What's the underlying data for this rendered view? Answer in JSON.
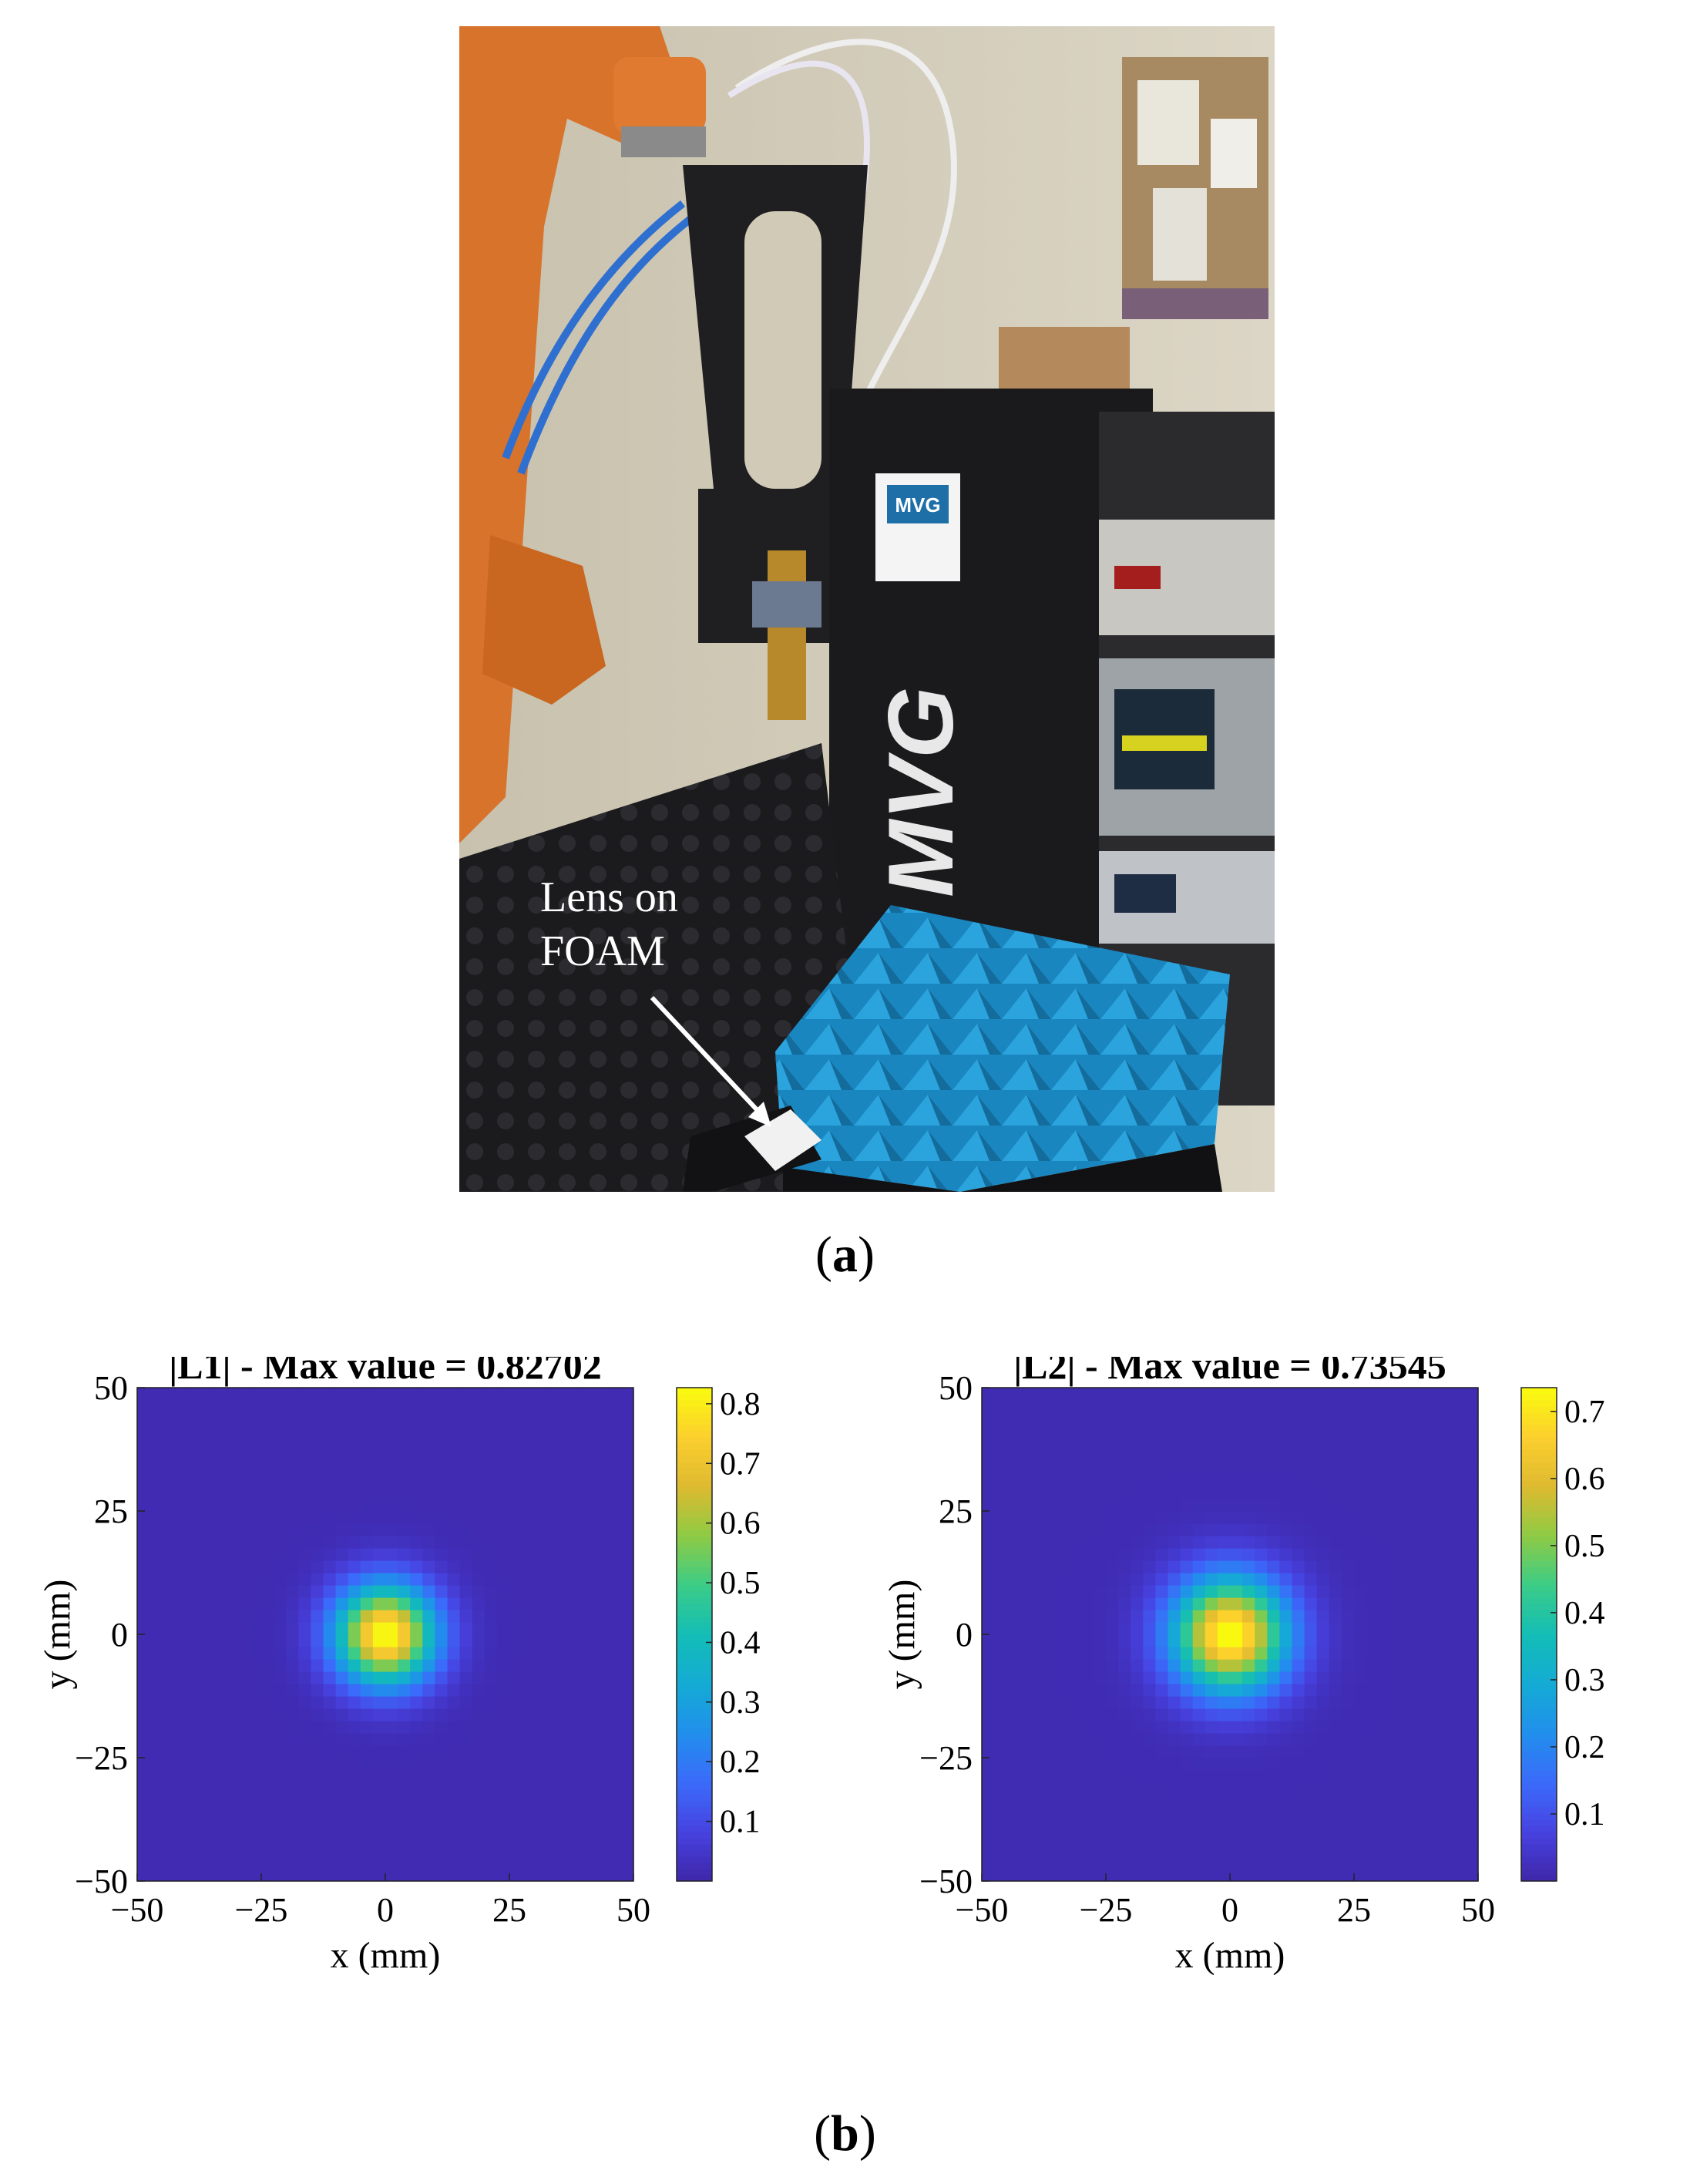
{
  "figure": {
    "panel_a": {
      "caption_open": "(",
      "caption_letter": "a",
      "caption_close": ")",
      "annotation_line1": "Lens on",
      "annotation_line2": "FOAM",
      "label_mvg": "MVG",
      "label_badge": "MVG"
    },
    "panel_b": {
      "caption_open": "(",
      "caption_letter": "b",
      "caption_close": ")"
    }
  },
  "chart_data": [
    {
      "type": "heatmap",
      "title": "|L1| - Max value = 0.82702",
      "xlabel": "x (mm)",
      "ylabel": "y (mm)",
      "xlim": [
        -50,
        50
      ],
      "ylim": [
        -50,
        50
      ],
      "xticks": [
        -50,
        -25,
        0,
        25,
        50
      ],
      "yticks": [
        -50,
        -25,
        0,
        25,
        50
      ],
      "xtick_labels": [
        "−50",
        "−25",
        "0",
        "25",
        "50"
      ],
      "ytick_labels": [
        "−50",
        "−25",
        "0",
        "25",
        "50"
      ],
      "max_value": 0.82702,
      "peak_center": [
        0,
        0
      ],
      "colorbar": {
        "colormap": "parula",
        "range": [
          0,
          0.82702
        ],
        "ticks": [
          0.1,
          0.2,
          0.3,
          0.4,
          0.5,
          0.6,
          0.7,
          0.8
        ],
        "tick_labels": [
          "0.1",
          "0.2",
          "0.3",
          "0.4",
          "0.5",
          "0.6",
          "0.7",
          "0.8"
        ]
      },
      "grid": false
    },
    {
      "type": "heatmap",
      "title": "|L2| - Max value = 0.73545",
      "xlabel": "x (mm)",
      "ylabel": "y (mm)",
      "xlim": [
        -50,
        50
      ],
      "ylim": [
        -50,
        50
      ],
      "xticks": [
        -50,
        -25,
        0,
        25,
        50
      ],
      "yticks": [
        -50,
        -25,
        0,
        25,
        50
      ],
      "xtick_labels": [
        "−50",
        "−25",
        "0",
        "25",
        "50"
      ],
      "ytick_labels": [
        "−50",
        "−25",
        "0",
        "25",
        "50"
      ],
      "max_value": 0.73545,
      "peak_center": [
        0,
        0
      ],
      "colorbar": {
        "colormap": "parula",
        "range": [
          0,
          0.73545
        ],
        "ticks": [
          0.1,
          0.2,
          0.3,
          0.4,
          0.5,
          0.6,
          0.7
        ],
        "tick_labels": [
          "0.1",
          "0.2",
          "0.3",
          "0.4",
          "0.5",
          "0.6",
          "0.7"
        ]
      },
      "grid": false
    }
  ],
  "colors": {
    "parula_low": "#3e26a8",
    "parula_mid": "#13bdb6",
    "parula_high": "#f9fb0e",
    "robot_orange": "#d9702a",
    "foam_blue": "#1e8fc8",
    "rack_black": "#1a1a1d"
  }
}
